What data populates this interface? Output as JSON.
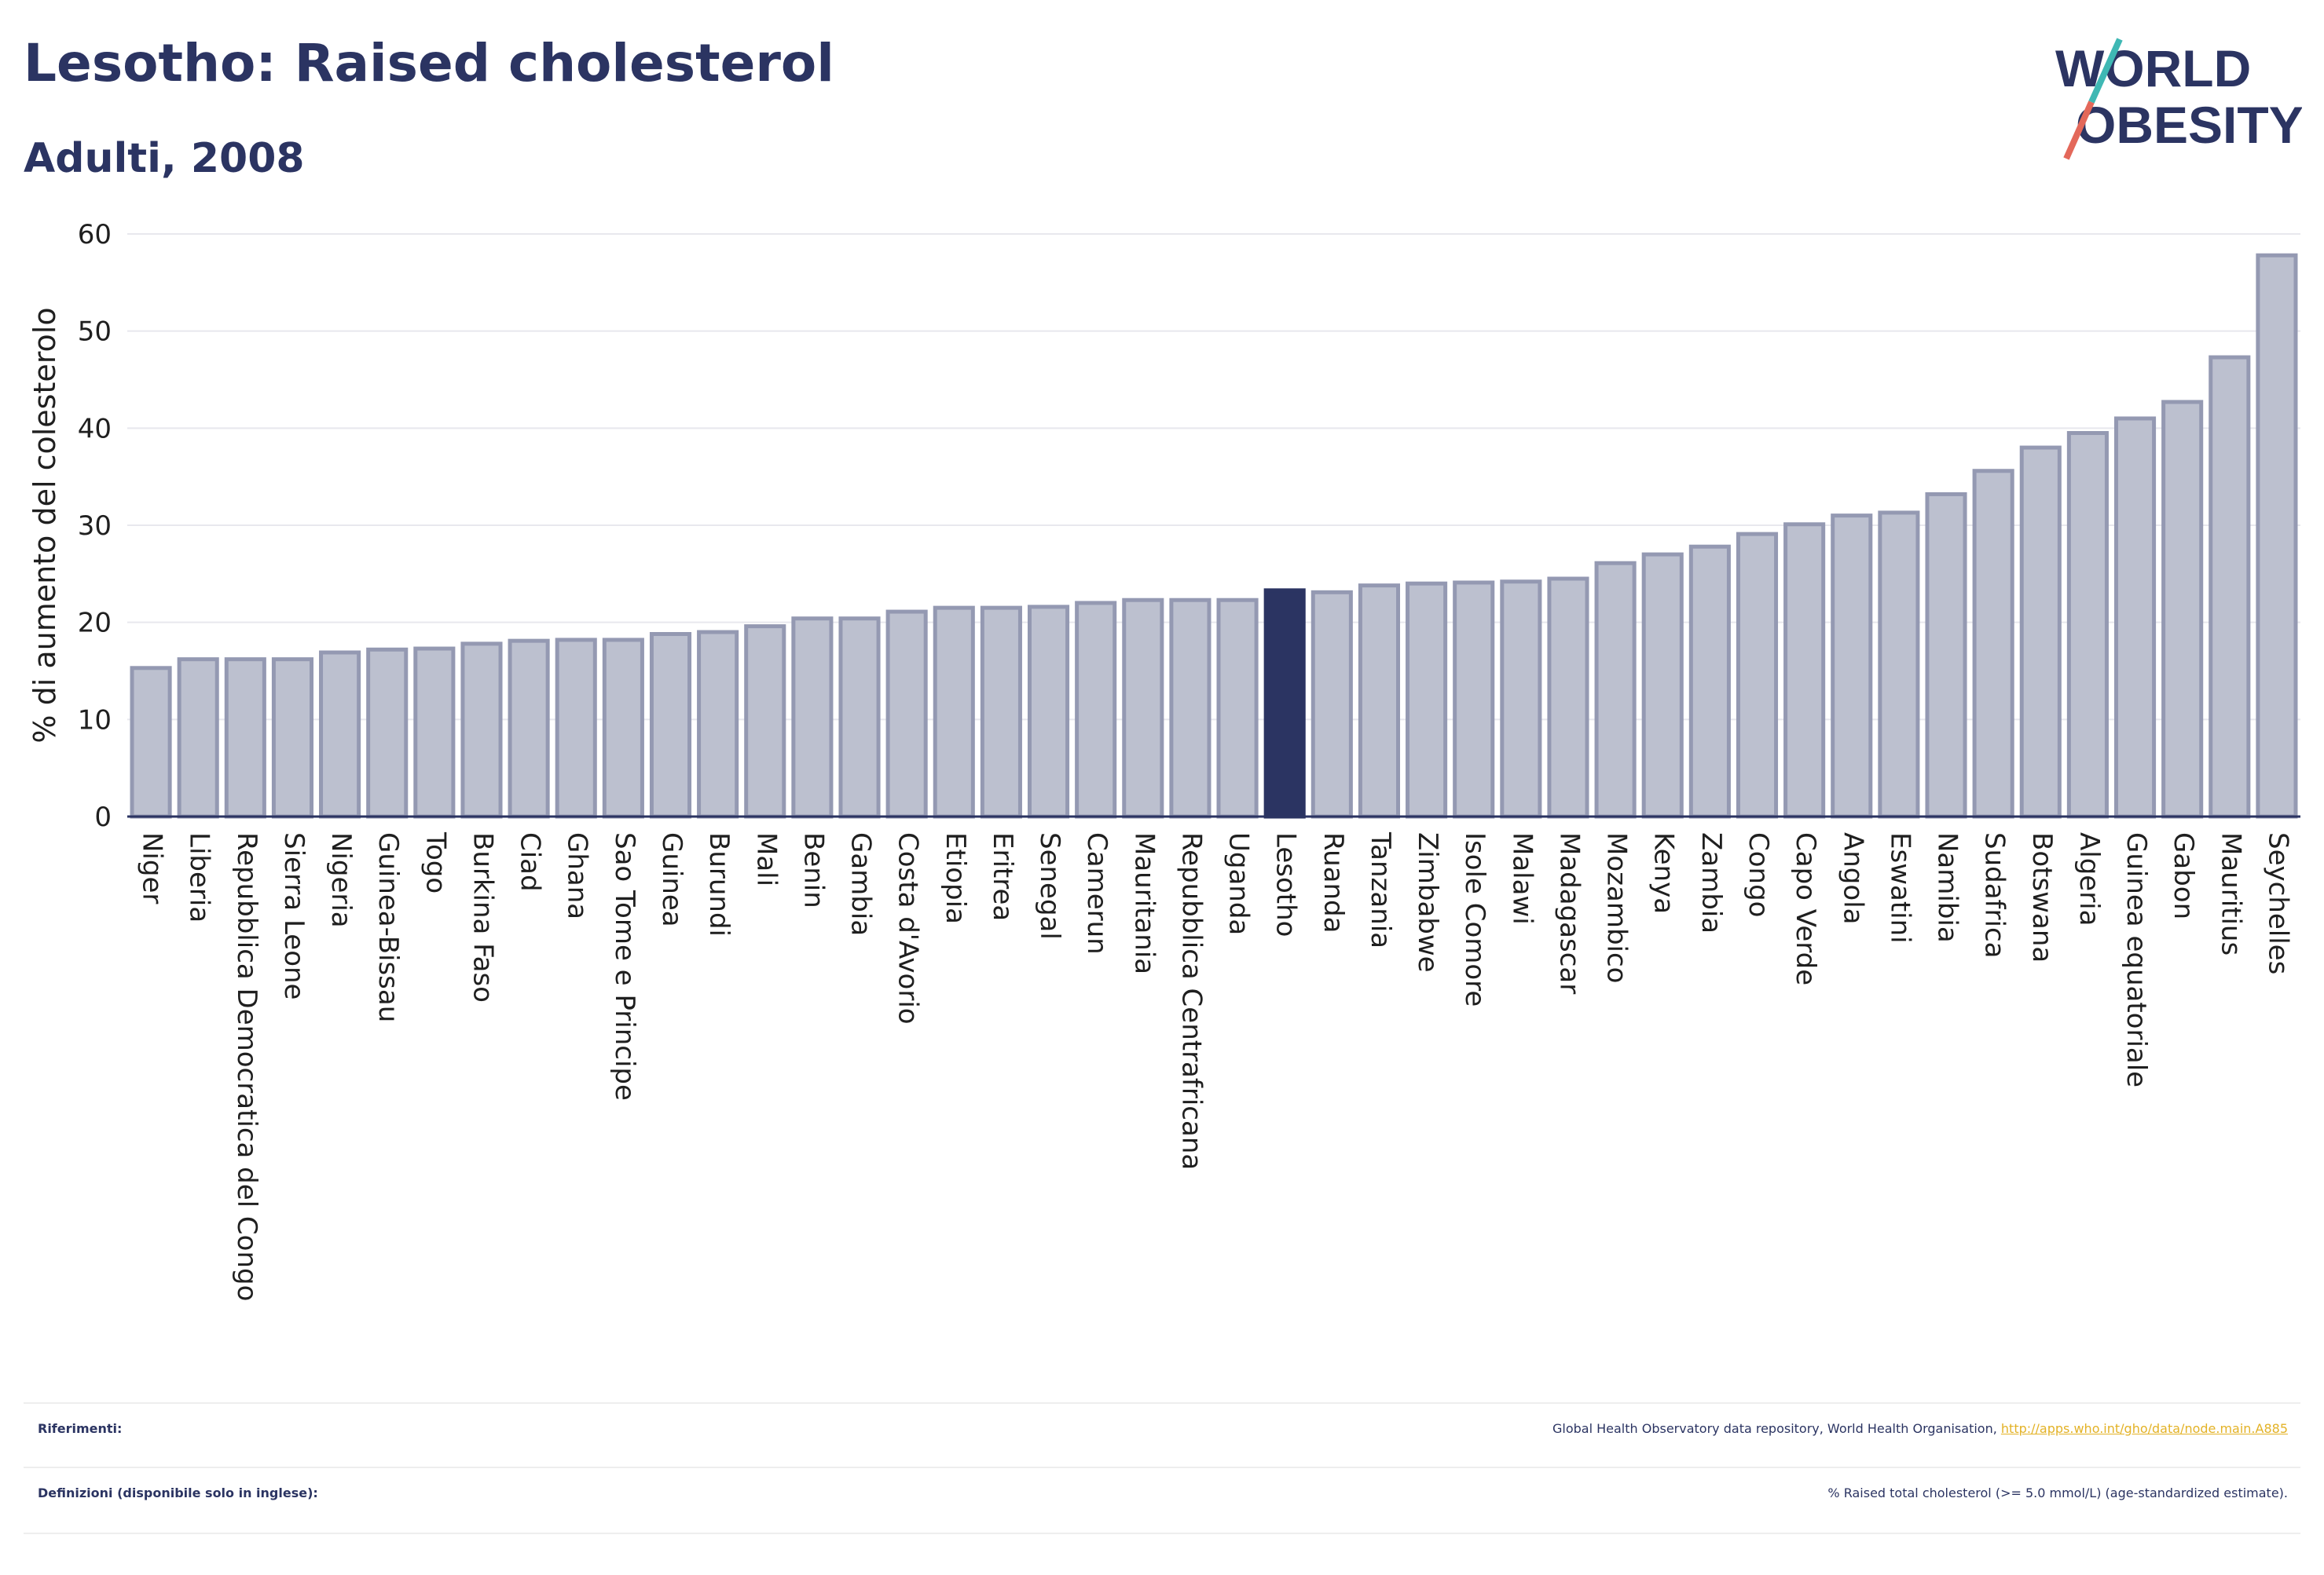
{
  "header": {
    "title": "Lesotho: Raised cholesterol",
    "subtitle": "Adulti, 2008"
  },
  "logo": {
    "line1": "WORLD",
    "line2": "OBESITY"
  },
  "chart_data": {
    "type": "bar",
    "ylabel": "% di aumento del colesterolo",
    "ylim": [
      0,
      60
    ],
    "yticks": [
      0,
      10,
      20,
      30,
      40,
      50,
      60
    ],
    "grid": true,
    "highlight": "Lesotho",
    "colors": {
      "bar": "#bcc0cf",
      "bar_border": "#9499b2",
      "highlight": "#2b3462",
      "grid": "#e8e8ee"
    },
    "categories": [
      "Niger",
      "Liberia",
      "Repubblica Democratica del Congo",
      "Sierra Leone",
      "Nigeria",
      "Guinea-Bissau",
      "Togo",
      "Burkina Faso",
      "Ciad",
      "Ghana",
      "Sao Tome e Principe",
      "Guinea",
      "Burundi",
      "Mali",
      "Benin",
      "Gambia",
      "Costa d'Avorio",
      "Etiopia",
      "Eritrea",
      "Senegal",
      "Camerun",
      "Mauritania",
      "Repubblica Centrafricana",
      "Uganda",
      "Lesotho",
      "Ruanda",
      "Tanzania",
      "Zimbabwe",
      "Isole Comore",
      "Malawi",
      "Madagascar",
      "Mozambico",
      "Kenya",
      "Zambia",
      "Congo",
      "Capo Verde",
      "Angola",
      "Eswatini",
      "Namibia",
      "Sudafrica",
      "Botswana",
      "Algeria",
      "Guinea equatoriale",
      "Gabon",
      "Mauritius",
      "Seychelles"
    ],
    "values": [
      15.3,
      16.2,
      16.2,
      16.2,
      16.9,
      17.2,
      17.3,
      17.8,
      18.1,
      18.2,
      18.2,
      18.8,
      19.0,
      19.6,
      20.4,
      20.4,
      21.1,
      21.5,
      21.5,
      21.6,
      22.0,
      22.3,
      22.3,
      22.3,
      23.3,
      23.1,
      23.8,
      24.0,
      24.1,
      24.2,
      24.5,
      26.1,
      27.0,
      27.8,
      29.1,
      30.1,
      31.0,
      31.3,
      33.2,
      35.6,
      38.0,
      39.5,
      41.0,
      42.7,
      47.3,
      57.8
    ]
  },
  "footer": {
    "references_label": "Riferimenti:",
    "references_text": "Global Health Observatory data repository, World Health Organisation,",
    "references_link": "http://apps.who.int/gho/data/node.main.A885",
    "definitions_label": "Definizioni (disponibile solo in inglese):",
    "definitions_text": "% Raised total cholesterol (>= 5.0 mmol/L) (age-standardized estimate)."
  }
}
